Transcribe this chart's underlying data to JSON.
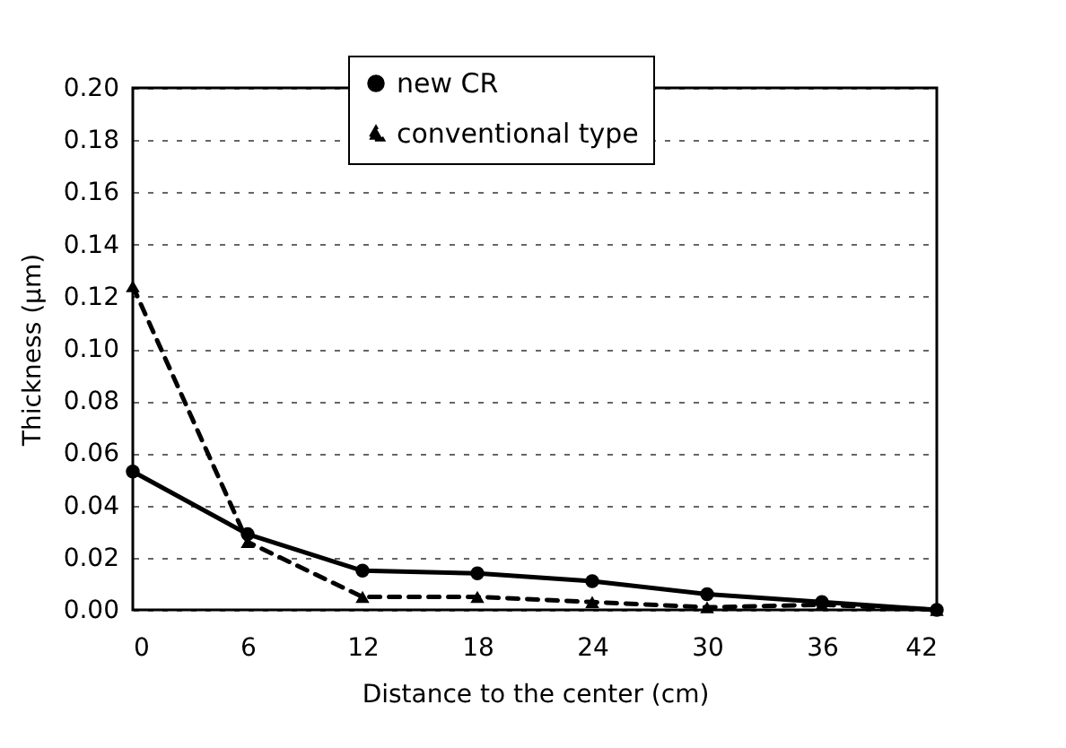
{
  "chart_data": {
    "type": "line",
    "xlabel": "Distance to the center (cm)",
    "ylabel": "Thickness (μm)",
    "x": [
      0,
      6,
      12,
      18,
      24,
      30,
      36,
      42
    ],
    "series": [
      {
        "name": "new CR",
        "color": "#000000",
        "marker": "circle",
        "line_style": "solid",
        "values": [
          0.053,
          0.029,
          0.015,
          0.014,
          0.011,
          0.006,
          0.003,
          0.0
        ]
      },
      {
        "name": "conventional type",
        "color": "#000000",
        "marker": "triangle",
        "line_style": "dashed",
        "values": [
          0.124,
          0.026,
          0.005,
          0.005,
          0.003,
          0.001,
          0.002,
          0.0
        ]
      }
    ],
    "xlim": [
      0,
      42
    ],
    "xticks": [
      0,
      6,
      12,
      18,
      24,
      30,
      36,
      42
    ],
    "ylim": [
      0,
      0.2
    ],
    "yticks": [
      {
        "value": 0,
        "label": "0.00"
      },
      {
        "value": 0.02,
        "label": "0.02"
      },
      {
        "value": 0.04,
        "label": "0.04"
      },
      {
        "value": 0.06,
        "label": "0.06"
      },
      {
        "value": 0.08,
        "label": "0.08"
      },
      {
        "value": 0.1,
        "label": "0.10"
      },
      {
        "value": 0.12,
        "label": "0.12"
      },
      {
        "value": 0.14,
        "label": "0.14"
      },
      {
        "value": 0.16,
        "label": "0.16"
      },
      {
        "value": 0.18,
        "label": "0.18"
      },
      {
        "value": 0.2,
        "label": "0.20"
      }
    ],
    "grid": "y",
    "legend": "top"
  }
}
